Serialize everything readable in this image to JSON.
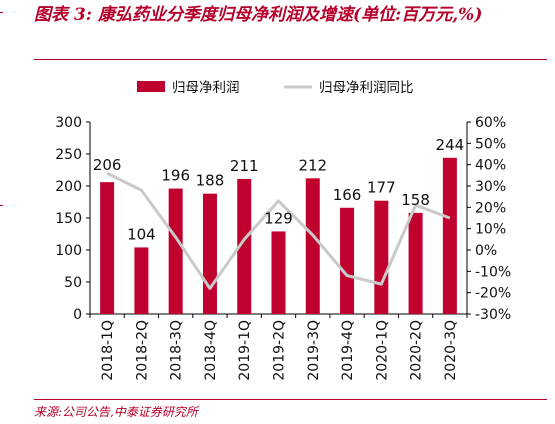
{
  "title": "图表 3: 康弘药业分季度归母净利润及增速(单位:百万元,%)",
  "source": "来源:公司公告,中泰证券研究所",
  "colors": {
    "bar": "#c0002d",
    "line": "#c9c9c9",
    "accent": "#b5002a"
  },
  "chart_data": {
    "type": "bar",
    "categories": [
      "2018-1Q",
      "2018-2Q",
      "2018-3Q",
      "2018-4Q",
      "2019-1Q",
      "2019-2Q",
      "2019-3Q",
      "2019-4Q",
      "2020-1Q",
      "2020-2Q",
      "2020-3Q"
    ],
    "series": [
      {
        "name": "归母净利润",
        "type": "bar",
        "axis": "left",
        "values": [
          206,
          104,
          196,
          188,
          211,
          129,
          212,
          166,
          177,
          158,
          244
        ],
        "data_labels": [
          "206",
          "104",
          "196",
          "188",
          "211",
          "129",
          "212",
          "166",
          "177",
          "158",
          "244"
        ]
      },
      {
        "name": "归母净利润同比",
        "type": "line",
        "axis": "right",
        "values": [
          36,
          28,
          6,
          -18,
          5,
          23,
          7,
          -12,
          -16,
          21,
          15
        ]
      }
    ],
    "y_left": {
      "lim": [
        0,
        300
      ],
      "ticks": [
        "0",
        "50",
        "100",
        "150",
        "200",
        "250",
        "300"
      ]
    },
    "y_right": {
      "lim": [
        -30,
        60
      ],
      "ticks": [
        "-30%",
        "-20%",
        "-10%",
        "0%",
        "10%",
        "20%",
        "30%",
        "40%",
        "50%",
        "60%"
      ]
    },
    "legend_position": "top",
    "grid": false
  }
}
